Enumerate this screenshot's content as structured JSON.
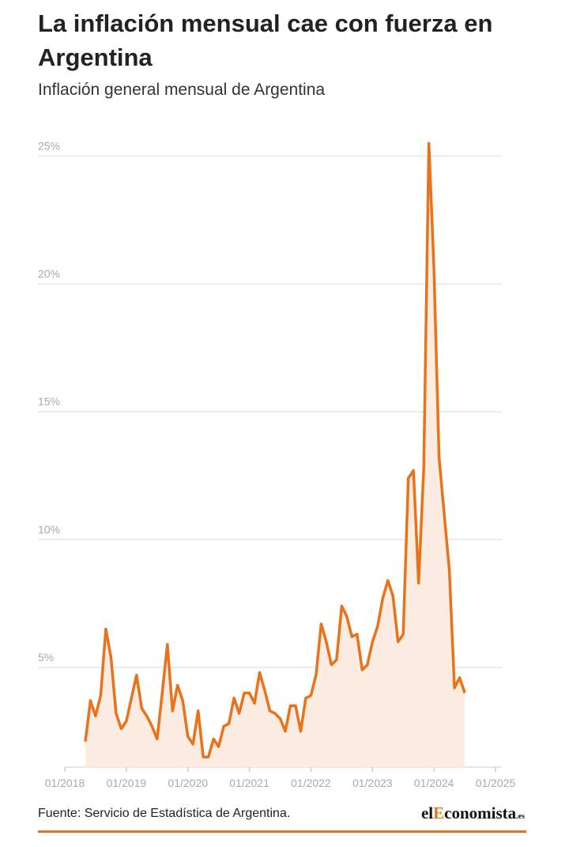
{
  "chart_data": {
    "type": "line",
    "title": "La inflación mensual cae con fuerza en Argentina",
    "subtitle": "Inflación general mensual de Argentina",
    "source": "Fuente: Servicio de Estadística de Argentina.",
    "logo": [
      "el",
      "E",
      "conomista",
      ".es"
    ],
    "x": [
      "05/2018",
      "06/2018",
      "07/2018",
      "08/2018",
      "09/2018",
      "10/2018",
      "11/2018",
      "12/2018",
      "01/2019",
      "02/2019",
      "03/2019",
      "04/2019",
      "05/2019",
      "06/2019",
      "07/2019",
      "08/2019",
      "09/2019",
      "10/2019",
      "11/2019",
      "12/2019",
      "01/2020",
      "02/2020",
      "03/2020",
      "04/2020",
      "05/2020",
      "06/2020",
      "07/2020",
      "08/2020",
      "09/2020",
      "10/2020",
      "11/2020",
      "12/2020",
      "01/2021",
      "02/2021",
      "03/2021",
      "04/2021",
      "05/2021",
      "06/2021",
      "07/2021",
      "08/2021",
      "09/2021",
      "10/2021",
      "11/2021",
      "12/2021",
      "01/2022",
      "02/2022",
      "03/2022",
      "04/2022",
      "05/2022",
      "06/2022",
      "07/2022",
      "08/2022",
      "09/2022",
      "10/2022",
      "11/2022",
      "12/2022",
      "01/2023",
      "02/2023",
      "03/2023",
      "04/2023",
      "05/2023",
      "06/2023",
      "07/2023",
      "08/2023",
      "09/2023",
      "10/2023",
      "11/2023",
      "12/2023",
      "01/2024",
      "02/2024",
      "03/2024",
      "04/2024",
      "05/2024",
      "06/2024",
      "07/2024"
    ],
    "series": [
      {
        "color": "#e8731a",
        "area_color": "#fdece2",
        "values": [
          2.1,
          3.7,
          3.1,
          3.9,
          6.5,
          5.4,
          3.2,
          2.6,
          2.9,
          3.8,
          4.7,
          3.4,
          3.1,
          2.7,
          2.2,
          4.0,
          5.9,
          3.3,
          4.3,
          3.7,
          2.3,
          2.0,
          3.3,
          1.5,
          1.5,
          2.2,
          1.9,
          2.7,
          2.8,
          3.8,
          3.2,
          4.0,
          4.0,
          3.6,
          4.8,
          4.1,
          3.3,
          3.2,
          3.0,
          2.5,
          3.5,
          3.5,
          2.5,
          3.8,
          3.9,
          4.7,
          6.7,
          6.0,
          5.1,
          5.3,
          7.4,
          7.0,
          6.2,
          6.3,
          4.9,
          5.1,
          6.0,
          6.6,
          7.7,
          8.4,
          7.8,
          6.0,
          6.3,
          12.4,
          12.7,
          8.3,
          12.8,
          25.5,
          20.6,
          13.2,
          11.0,
          8.8,
          4.2,
          4.6,
          4.0
        ]
      }
    ],
    "xlim": [
      "01/2018",
      "01/2025"
    ],
    "xticks": [
      "01/2018",
      "01/2019",
      "01/2020",
      "01/2021",
      "01/2022",
      "01/2023",
      "01/2024",
      "01/2025"
    ],
    "ylim": [
      1.1,
      26
    ],
    "yticks": [
      {
        "value": 5,
        "label": "5%"
      },
      {
        "value": 10,
        "label": "10%"
      },
      {
        "value": 15,
        "label": "15%"
      },
      {
        "value": 20,
        "label": "20%"
      },
      {
        "value": 25,
        "label": "25%"
      }
    ],
    "grid": true
  }
}
